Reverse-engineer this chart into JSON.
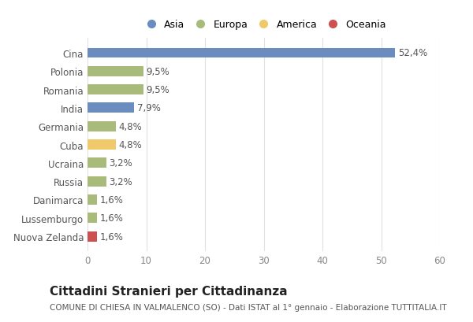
{
  "categories": [
    "Nuova Zelanda",
    "Lussemburgo",
    "Danimarca",
    "Russia",
    "Ucraina",
    "Cuba",
    "Germania",
    "India",
    "Romania",
    "Polonia",
    "Cina"
  ],
  "values": [
    1.6,
    1.6,
    1.6,
    3.2,
    3.2,
    4.8,
    4.8,
    7.9,
    9.5,
    9.5,
    52.4
  ],
  "colors": [
    "#cc5050",
    "#a8bb7a",
    "#a8bb7a",
    "#a8bb7a",
    "#a8bb7a",
    "#f0c96a",
    "#a8bb7a",
    "#6b8cbf",
    "#a8bb7a",
    "#a8bb7a",
    "#6b8cbf"
  ],
  "legend_labels": [
    "Asia",
    "Europa",
    "America",
    "Oceania"
  ],
  "legend_colors": [
    "#6b8cbf",
    "#a8bb7a",
    "#f0c96a",
    "#cc5050"
  ],
  "xlim": [
    0,
    60
  ],
  "xticks": [
    0,
    10,
    20,
    30,
    40,
    50,
    60
  ],
  "title": "Cittadini Stranieri per Cittadinanza",
  "subtitle": "COMUNE DI CHIESA IN VALMALENCO (SO) - Dati ISTAT al 1° gennaio - Elaborazione TUTTITALIA.IT",
  "background_color": "#ffffff",
  "grid_color": "#e0e0e0",
  "bar_height": 0.55,
  "value_fontsize": 8.5,
  "ytick_fontsize": 8.5,
  "xtick_fontsize": 8.5,
  "legend_fontsize": 9,
  "title_fontsize": 11,
  "subtitle_fontsize": 7.5
}
